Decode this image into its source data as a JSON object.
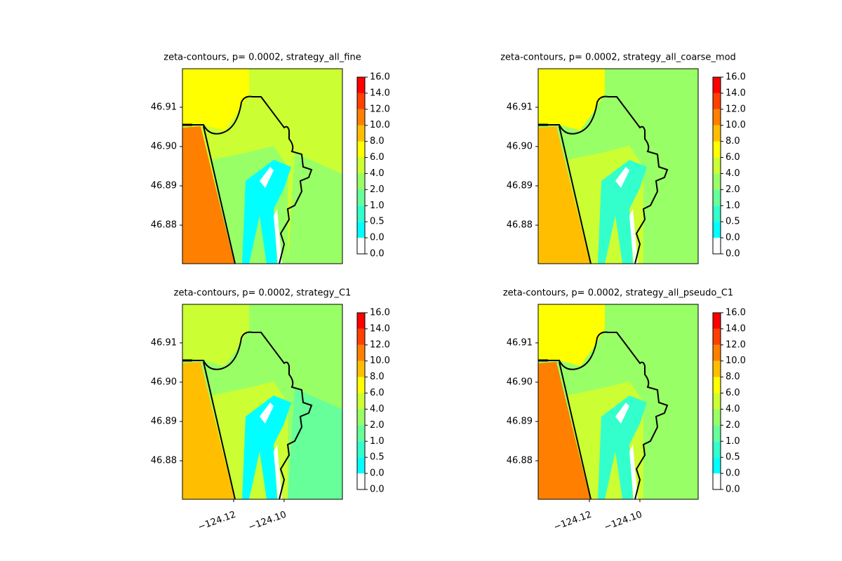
{
  "chart_data": [
    {
      "type": "contour",
      "title": "zeta-contours, p= 0.0002, strategy_all_fine",
      "xlim": [
        -124.1403,
        -124.0769
      ],
      "ylim": [
        46.8702,
        46.9198
      ],
      "yticks": [
        46.88,
        46.89,
        {
          "value": 46.9,
          "label": "46.90"
        },
        46.91
      ],
      "colorbar": {
        "ticks": [
          {
            "value": 0,
            "label": "0.0"
          },
          {
            "value": 0.01,
            "label": "0.0"
          },
          {
            "value": 0.5,
            "label": "0.5"
          },
          {
            "value": 1,
            "label": "1.0"
          },
          {
            "value": 2,
            "label": "2.0"
          },
          {
            "value": 4,
            "label": "4.0"
          },
          {
            "value": 6,
            "label": "6.0"
          },
          {
            "value": 8,
            "label": "8.0"
          },
          {
            "value": 10,
            "label": "10.0"
          },
          {
            "value": 12,
            "label": "12.0"
          },
          {
            "value": 14,
            "label": "14.0"
          },
          {
            "value": 16,
            "label": "16.0"
          }
        ],
        "colors": [
          "#ffffff",
          "#00ffff",
          "#33ffcc",
          "#66ff99",
          "#99ff66",
          "#ccff33",
          "#ffff00",
          "#ffbf00",
          "#ff8000",
          "#ff4000",
          "#ff0000"
        ]
      }
    },
    {
      "type": "contour",
      "title": "zeta-contours, p= 0.0002, strategy_all_coarse_mod",
      "xlim": [
        -124.1403,
        -124.0769
      ],
      "ylim": [
        46.8702,
        46.9198
      ],
      "yticks": [
        46.88,
        46.89,
        {
          "value": 46.9,
          "label": "46.90"
        },
        46.91
      ],
      "colorbar": {
        "ticks": [
          {
            "value": 0,
            "label": "0.0"
          },
          {
            "value": 0.01,
            "label": "0.0"
          },
          {
            "value": 0.5,
            "label": "0.5"
          },
          {
            "value": 1,
            "label": "1.0"
          },
          {
            "value": 2,
            "label": "2.0"
          },
          {
            "value": 4,
            "label": "4.0"
          },
          {
            "value": 6,
            "label": "6.0"
          },
          {
            "value": 8,
            "label": "8.0"
          },
          {
            "value": 10,
            "label": "10.0"
          },
          {
            "value": 12,
            "label": "12.0"
          },
          {
            "value": 14,
            "label": "14.0"
          },
          {
            "value": 16,
            "label": "16.0"
          }
        ],
        "colors": [
          "#ffffff",
          "#00ffff",
          "#33ffcc",
          "#66ff99",
          "#99ff66",
          "#ccff33",
          "#ffff00",
          "#ffbf00",
          "#ff8000",
          "#ff4000",
          "#ff0000"
        ]
      }
    },
    {
      "type": "contour",
      "title": "zeta-contours, p= 0.0002, strategy_C1",
      "xlim": [
        -124.1403,
        -124.0769
      ],
      "ylim": [
        46.8702,
        46.9198
      ],
      "xticks": [
        {
          "value": -124.12,
          "label": "−124.12"
        },
        {
          "value": -124.1,
          "label": "−124.10"
        }
      ],
      "yticks": [
        46.88,
        46.89,
        {
          "value": 46.9,
          "label": "46.90"
        },
        46.91
      ],
      "colorbar": {
        "ticks": [
          {
            "value": 0,
            "label": "0.0"
          },
          {
            "value": 0.01,
            "label": "0.0"
          },
          {
            "value": 0.5,
            "label": "0.5"
          },
          {
            "value": 1,
            "label": "1.0"
          },
          {
            "value": 2,
            "label": "2.0"
          },
          {
            "value": 4,
            "label": "4.0"
          },
          {
            "value": 6,
            "label": "6.0"
          },
          {
            "value": 8,
            "label": "8.0"
          },
          {
            "value": 10,
            "label": "10.0"
          },
          {
            "value": 12,
            "label": "12.0"
          },
          {
            "value": 14,
            "label": "14.0"
          },
          {
            "value": 16,
            "label": "16.0"
          }
        ],
        "colors": [
          "#ffffff",
          "#00ffff",
          "#33ffcc",
          "#66ff99",
          "#99ff66",
          "#ccff33",
          "#ffff00",
          "#ffbf00",
          "#ff8000",
          "#ff4000",
          "#ff0000"
        ]
      }
    },
    {
      "type": "contour",
      "title": "zeta-contours, p= 0.0002, strategy_all_pseudo_C1",
      "xlim": [
        -124.1403,
        -124.0769
      ],
      "ylim": [
        46.8702,
        46.9198
      ],
      "xticks": [
        {
          "value": -124.12,
          "label": "−124.12"
        },
        {
          "value": -124.1,
          "label": "−124.10"
        }
      ],
      "yticks": [
        46.88,
        46.89,
        {
          "value": 46.9,
          "label": "46.90"
        },
        46.91
      ],
      "colorbar": {
        "ticks": [
          {
            "value": 0,
            "label": "0.0"
          },
          {
            "value": 0.01,
            "label": "0.0"
          },
          {
            "value": 0.5,
            "label": "0.5"
          },
          {
            "value": 1,
            "label": "1.0"
          },
          {
            "value": 2,
            "label": "2.0"
          },
          {
            "value": 4,
            "label": "4.0"
          },
          {
            "value": 6,
            "label": "6.0"
          },
          {
            "value": 8,
            "label": "8.0"
          },
          {
            "value": 10,
            "label": "10.0"
          },
          {
            "value": 12,
            "label": "12.0"
          },
          {
            "value": 14,
            "label": "14.0"
          },
          {
            "value": 16,
            "label": "16.0"
          }
        ],
        "colors": [
          "#ffffff",
          "#00ffff",
          "#33ffcc",
          "#66ff99",
          "#99ff66",
          "#ccff33",
          "#ffff00",
          "#ffbf00",
          "#ff8000",
          "#ff4000",
          "#ff0000"
        ]
      }
    }
  ]
}
